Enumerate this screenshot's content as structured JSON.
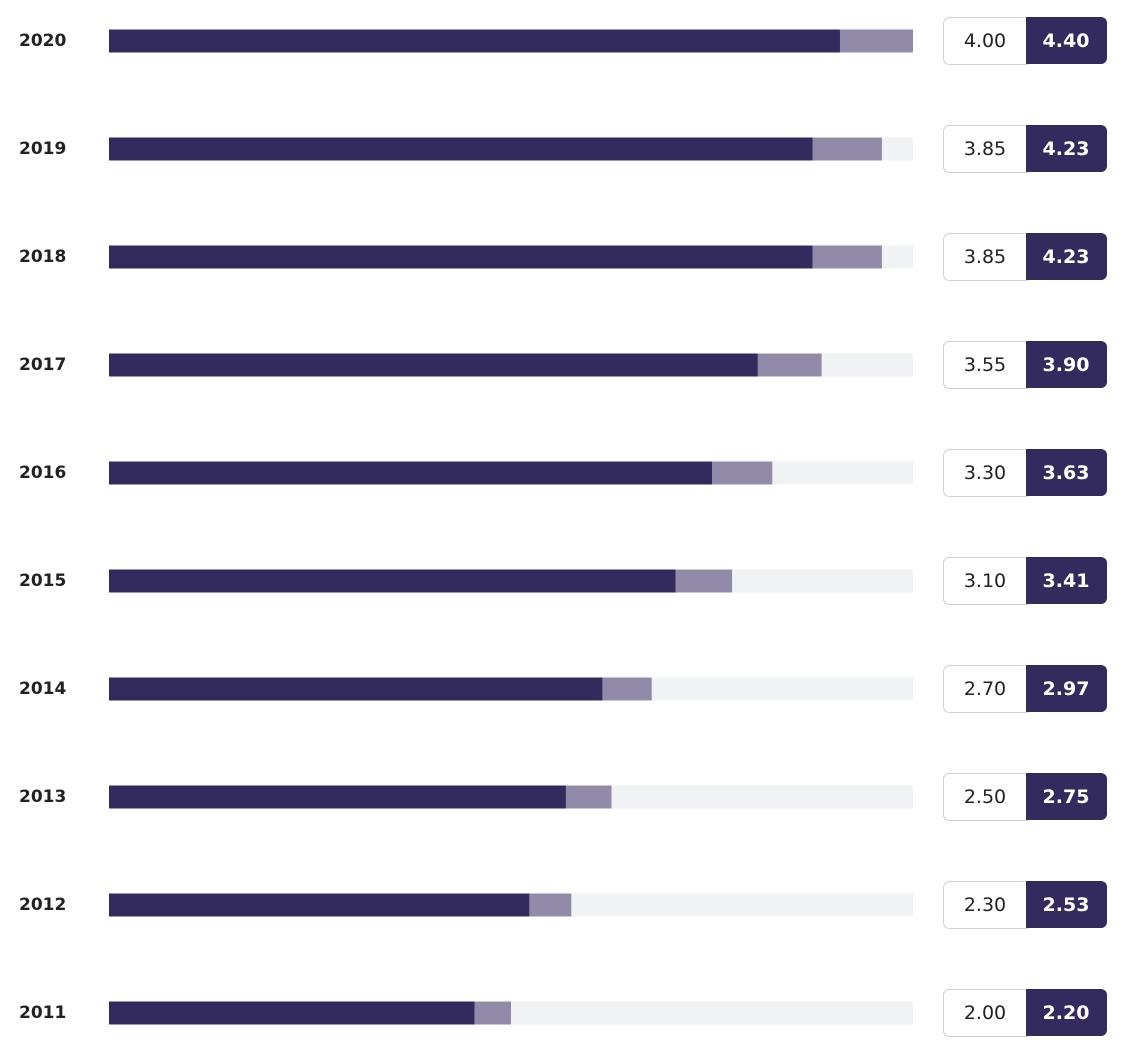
{
  "chart_data": {
    "type": "bar",
    "categories": [
      "2020",
      "2019",
      "2018",
      "2017",
      "2016",
      "2015",
      "2014",
      "2013",
      "2012",
      "2011"
    ],
    "xlim": [
      0,
      4.4
    ],
    "series": [
      {
        "color": "#918ba9",
        "values": [
          4.4,
          4.23,
          4.23,
          3.9,
          3.63,
          3.41,
          2.97,
          2.75,
          2.53,
          2.2
        ],
        "value_labels": [
          "4.40",
          "4.23",
          "4.23",
          "3.90",
          "3.63",
          "3.41",
          "2.97",
          "2.75",
          "2.53",
          "2.20"
        ]
      },
      {
        "color": "#332a5e",
        "values": [
          4,
          3.85,
          3.85,
          3.55,
          3.3,
          3.1,
          2.7,
          2.5,
          2.3,
          2
        ],
        "value_labels": [
          "4.00",
          "3.85",
          "3.85",
          "3.55",
          "3.30",
          "3.10",
          "2.70",
          "2.50",
          "2.30",
          "2.00"
        ]
      }
    ]
  }
}
